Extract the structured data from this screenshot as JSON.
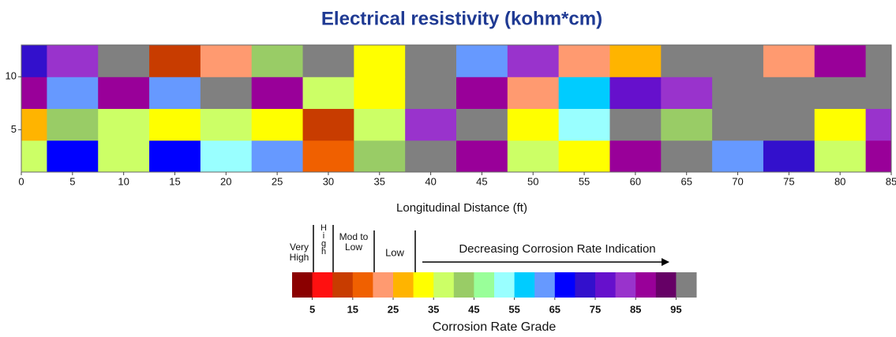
{
  "chart_data": {
    "type": "heatmap",
    "title": "Electrical resistivity (kohm*cm)",
    "x_label": "Longitudinal Distance (ft)",
    "x": [
      0,
      5,
      10,
      15,
      20,
      25,
      30,
      35,
      40,
      45,
      50,
      55,
      60,
      65,
      70,
      75,
      80,
      85
    ],
    "y": [
      2.5,
      5.5,
      8.5,
      11.5
    ],
    "z": [
      [
        35,
        65,
        35,
        65,
        50,
        60,
        15,
        40,
        97,
        85,
        35,
        30,
        85,
        97,
        60,
        70,
        35,
        85
      ],
      [
        25,
        40,
        35,
        30,
        35,
        30,
        10,
        35,
        80,
        97,
        30,
        50,
        97,
        40,
        97,
        97,
        30,
        80
      ],
      [
        85,
        60,
        85,
        60,
        97,
        85,
        35,
        30,
        97,
        85,
        20,
        55,
        75,
        80,
        97,
        97,
        97,
        97
      ],
      [
        70,
        80,
        97,
        10,
        20,
        40,
        97,
        30,
        97,
        60,
        80,
        20,
        25,
        97,
        97,
        20,
        85,
        97
      ]
    ],
    "xlim": [
      0,
      85
    ],
    "ylim": [
      1,
      13
    ],
    "xticks": [
      0,
      5,
      10,
      15,
      20,
      25,
      30,
      35,
      40,
      45,
      50,
      55,
      60,
      65,
      70,
      75,
      80,
      85
    ],
    "yticks": [
      5,
      10
    ],
    "colorbar": {
      "label": "Corrosion Rate Grade",
      "lim": [
        0,
        100
      ],
      "ticks": [
        5,
        15,
        25,
        35,
        45,
        55,
        65,
        75,
        85,
        95
      ],
      "colors": [
        "#8b0000",
        "#ff1010",
        "#c83c00",
        "#f06000",
        "#ff9a70",
        "#ffb400",
        "#ffff00",
        "#ccff66",
        "#99cc66",
        "#99ff99",
        "#99ffff",
        "#00ccff",
        "#6699ff",
        "#0000ff",
        "#3310cc",
        "#6610cc",
        "#9933cc",
        "#990099",
        "#660066",
        "#808080"
      ],
      "grades": [
        "Very High",
        "High",
        "Mod to Low",
        "Low"
      ],
      "trend": "Decreasing Corrosion Rate Indication"
    }
  }
}
